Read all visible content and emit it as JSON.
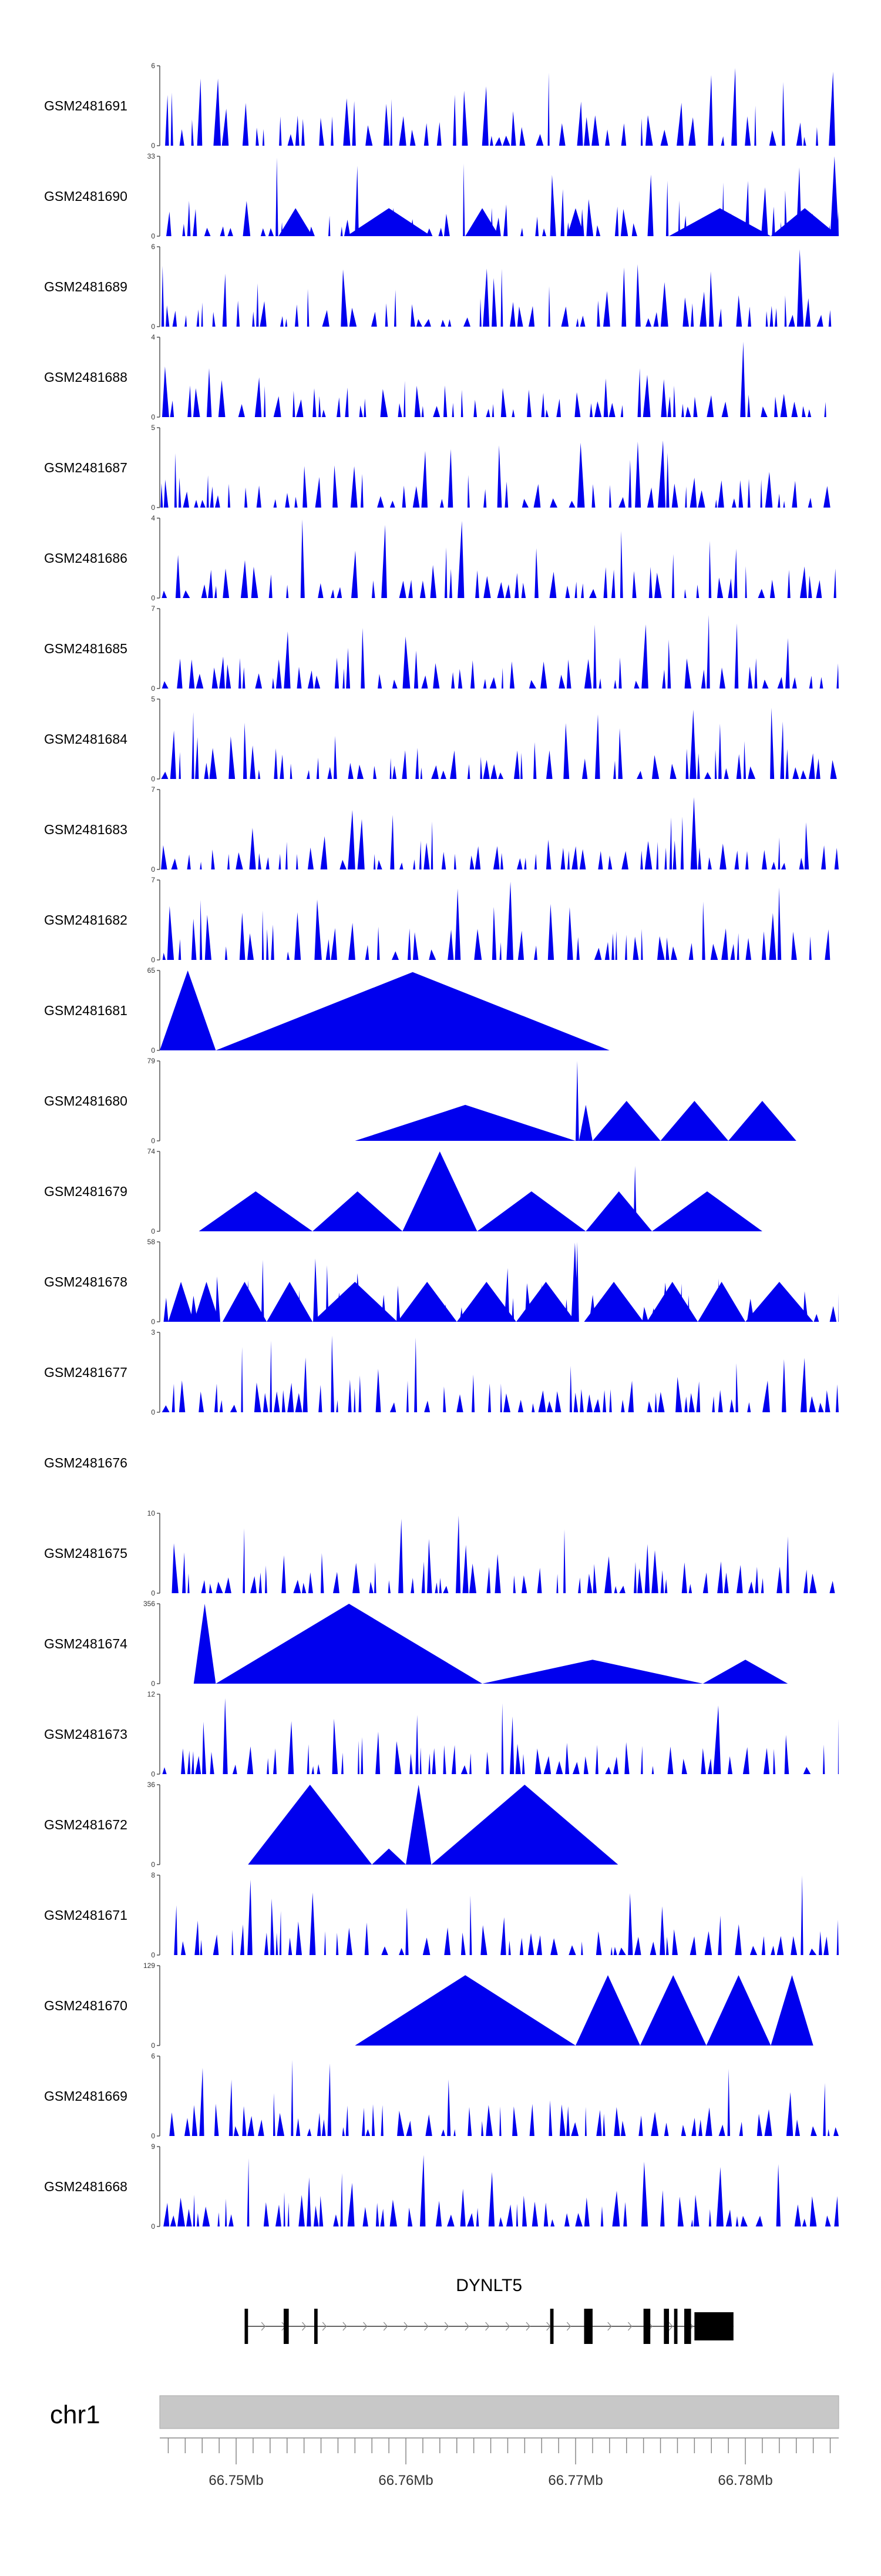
{
  "chart_data": {
    "type": "area",
    "genome": {
      "chromosome": "chr1",
      "xlim": [
        66.7455,
        66.7855
      ],
      "xunit": "Mb",
      "tick_labels": [
        "66.75Mb",
        "66.76Mb",
        "66.77Mb",
        "66.78Mb"
      ],
      "tick_values": [
        66.75,
        66.76,
        66.77,
        66.78
      ]
    },
    "gene": {
      "name": "DYNLT5",
      "start": 66.7505,
      "end": 66.7793,
      "exons": [
        [
          66.7505,
          66.7507
        ],
        [
          66.7528,
          66.7531
        ],
        [
          66.7546,
          66.7548
        ],
        [
          66.7685,
          66.7687
        ],
        [
          66.7705,
          66.771
        ],
        [
          66.774,
          66.7744
        ],
        [
          66.7752,
          66.7755
        ],
        [
          66.7758,
          66.776
        ],
        [
          66.7764,
          66.7768
        ],
        [
          66.777,
          66.7793
        ]
      ]
    },
    "series": [
      {
        "name": "GSM2481691",
        "ymax": 6,
        "y_tick_labels": [
          "6",
          "0"
        ],
        "density": 0.24,
        "seed": 11
      },
      {
        "name": "GSM2481690",
        "ymax": 33,
        "y_tick_labels": [
          "33",
          "0"
        ],
        "density": 0.1,
        "seed": 23,
        "peaks": [
          [
            66.7455,
            66.7455,
            0
          ],
          [
            66.7525,
            66.7545,
            0.35
          ],
          [
            66.7565,
            66.7615,
            0.35
          ],
          [
            66.7635,
            66.7655,
            0.35
          ],
          [
            66.7695,
            66.7705,
            0.35
          ],
          [
            66.7755,
            66.7815,
            0.35
          ],
          [
            66.7815,
            66.7855,
            0.35
          ],
          [
            66.785,
            66.7855,
            1.0
          ]
        ]
      },
      {
        "name": "GSM2481689",
        "ymax": 6,
        "y_tick_labels": [
          "6",
          "0"
        ],
        "density": 0.3,
        "seed": 37
      },
      {
        "name": "GSM2481688",
        "ymax": 4,
        "y_tick_labels": [
          "4",
          "0"
        ],
        "density": 0.3,
        "seed": 41
      },
      {
        "name": "GSM2481687",
        "ymax": 5,
        "y_tick_labels": [
          "5",
          "0"
        ],
        "density": 0.28,
        "seed": 53
      },
      {
        "name": "GSM2481686",
        "ymax": 4,
        "y_tick_labels": [
          "4",
          "0"
        ],
        "density": 0.3,
        "seed": 61
      },
      {
        "name": "GSM2481685",
        "ymax": 7,
        "y_tick_labels": [
          "7",
          "0"
        ],
        "density": 0.34,
        "seed": 73
      },
      {
        "name": "GSM2481684",
        "ymax": 5,
        "y_tick_labels": [
          "5",
          "0"
        ],
        "density": 0.34,
        "seed": 79
      },
      {
        "name": "GSM2481683",
        "ymax": 7,
        "y_tick_labels": [
          "7",
          "0"
        ],
        "density": 0.3,
        "seed": 89
      },
      {
        "name": "GSM2481682",
        "ymax": 7,
        "y_tick_labels": [
          "7",
          "0"
        ],
        "density": 0.24,
        "seed": 97
      },
      {
        "name": "GSM2481681",
        "ymax": 65,
        "y_tick_labels": [
          "65",
          "0"
        ],
        "peaks": [
          [
            66.7455,
            66.7488,
            1.0
          ],
          [
            66.7488,
            66.772,
            0.98
          ]
        ]
      },
      {
        "name": "GSM2481680",
        "ymax": 79,
        "y_tick_labels": [
          "79",
          "0"
        ],
        "peaks": [
          [
            66.757,
            66.77,
            0.45
          ],
          [
            66.77,
            66.7702,
            1.0
          ],
          [
            66.7702,
            66.771,
            0.45
          ],
          [
            66.771,
            66.775,
            0.5
          ],
          [
            66.775,
            66.779,
            0.5
          ],
          [
            66.779,
            66.783,
            0.5
          ]
        ]
      },
      {
        "name": "GSM2481679",
        "ymax": 74,
        "y_tick_labels": [
          "74",
          "0"
        ],
        "peaks": [
          [
            66.7478,
            66.7545,
            0.5
          ],
          [
            66.7545,
            66.7598,
            0.5
          ],
          [
            66.7598,
            66.7642,
            1.0
          ],
          [
            66.7642,
            66.7706,
            0.5
          ],
          [
            66.7706,
            66.7745,
            0.5
          ],
          [
            66.7734,
            66.7736,
            0.82
          ],
          [
            66.7745,
            66.781,
            0.5
          ]
        ]
      },
      {
        "name": "GSM2481678",
        "ymax": 58,
        "y_tick_labels": [
          "58",
          "0"
        ],
        "density": 0.05,
        "seed": 131,
        "peaks": [
          [
            66.746,
            66.7475,
            0.5
          ],
          [
            66.7475,
            66.749,
            0.5
          ],
          [
            66.7492,
            66.7518,
            0.5
          ],
          [
            66.7506,
            66.7508,
            0.52
          ],
          [
            66.7518,
            66.7545,
            0.5
          ],
          [
            66.7545,
            66.7595,
            0.5
          ],
          [
            66.7595,
            66.763,
            0.5
          ],
          [
            66.763,
            66.7665,
            0.5
          ],
          [
            66.7665,
            66.77,
            0.5
          ],
          [
            66.77,
            66.7702,
            1.0
          ],
          [
            66.7705,
            66.774,
            0.5
          ],
          [
            66.7742,
            66.7772,
            0.5
          ],
          [
            66.7772,
            66.78,
            0.5
          ],
          [
            66.78,
            66.784,
            0.5
          ]
        ]
      },
      {
        "name": "GSM2481677",
        "ymax": 3,
        "y_tick_labels": [
          "3",
          "0"
        ],
        "density": 0.3,
        "seed": 139
      },
      {
        "name": "GSM2481676",
        "ymax": null,
        "y_tick_labels": []
      },
      {
        "name": "GSM2481675",
        "ymax": 10,
        "y_tick_labels": [
          "10",
          "0"
        ],
        "density": 0.24,
        "seed": 149
      },
      {
        "name": "GSM2481674",
        "ymax": 356,
        "y_tick_labels": [
          "356",
          "0"
        ],
        "peaks": [
          [
            66.7475,
            66.7488,
            1.0
          ],
          [
            66.7488,
            66.7645,
            1.0
          ],
          [
            66.7645,
            66.7775,
            0.3
          ],
          [
            66.7775,
            66.7825,
            0.3
          ]
        ]
      },
      {
        "name": "GSM2481673",
        "ymax": 12,
        "y_tick_labels": [
          "12",
          "0"
        ],
        "density": 0.16,
        "seed": 163
      },
      {
        "name": "GSM2481672",
        "ymax": 36,
        "y_tick_labels": [
          "36",
          "0"
        ],
        "peaks": [
          [
            66.7507,
            66.758,
            1.0
          ],
          [
            66.758,
            66.76,
            0.2
          ],
          [
            66.76,
            66.7615,
            1.0
          ],
          [
            66.7615,
            66.7725,
            1.0
          ]
        ]
      },
      {
        "name": "GSM2481671",
        "ymax": 8,
        "y_tick_labels": [
          "8",
          "0"
        ],
        "density": 0.22,
        "seed": 173
      },
      {
        "name": "GSM2481670",
        "ymax": 129,
        "y_tick_labels": [
          "129",
          "0"
        ],
        "peaks": [
          [
            66.757,
            66.77,
            0.88
          ],
          [
            66.77,
            66.7738,
            0.88
          ],
          [
            66.7738,
            66.7777,
            0.88
          ],
          [
            66.7777,
            66.7815,
            0.88
          ],
          [
            66.7815,
            66.784,
            0.88
          ]
        ]
      },
      {
        "name": "GSM2481669",
        "ymax": 6,
        "y_tick_labels": [
          "6",
          "0"
        ],
        "density": 0.3,
        "seed": 191
      },
      {
        "name": "GSM2481668",
        "ymax": 9,
        "y_tick_labels": [
          "9",
          "0"
        ],
        "density": 0.28,
        "seed": 197
      }
    ]
  },
  "colors": {
    "signal": "#0000ee",
    "axis": "#555555",
    "ideogram": "#c8c8c8",
    "gene": "#000000"
  }
}
